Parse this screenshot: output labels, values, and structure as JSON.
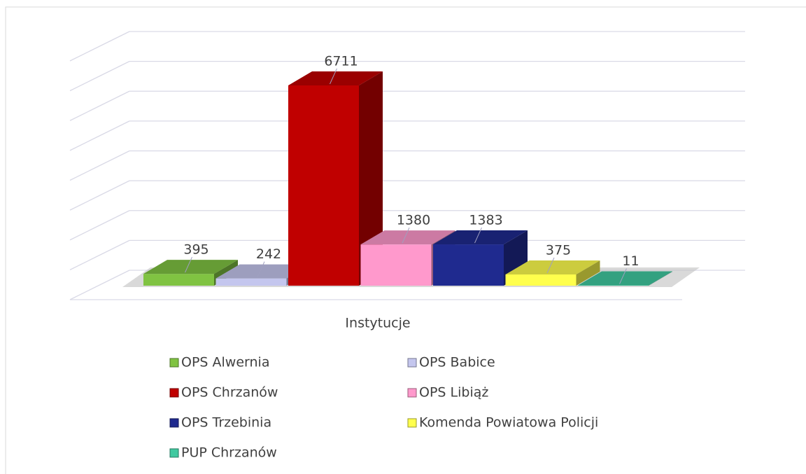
{
  "chart_data": {
    "type": "bar3d",
    "categories": [
      "Instytucje"
    ],
    "series": [
      {
        "name": "OPS Alwernia",
        "color": "#80c342",
        "values": [
          395
        ]
      },
      {
        "name": "OPS Babice",
        "color": "#c4c6ee",
        "values": [
          242
        ]
      },
      {
        "name": "OPS Chrzanów",
        "color": "#c00000",
        "values": [
          6711
        ]
      },
      {
        "name": "OPS Libiąż",
        "color": "#ff99cc",
        "values": [
          1380
        ]
      },
      {
        "name": "OPS Trzebinia",
        "color": "#1f2a8f",
        "values": [
          1383
        ]
      },
      {
        "name": "Komenda Powiatowa Policji",
        "color": "#ffff4d",
        "values": [
          375
        ]
      },
      {
        "name": "PUP Chrzanów",
        "color": "#40c9a0",
        "values": [
          11
        ]
      }
    ],
    "ylim": [
      0,
      8000
    ],
    "yticks": [
      0,
      1000,
      2000,
      3000,
      4000,
      5000,
      6000,
      7000,
      8000
    ],
    "grid": true,
    "legend": "bottom"
  }
}
